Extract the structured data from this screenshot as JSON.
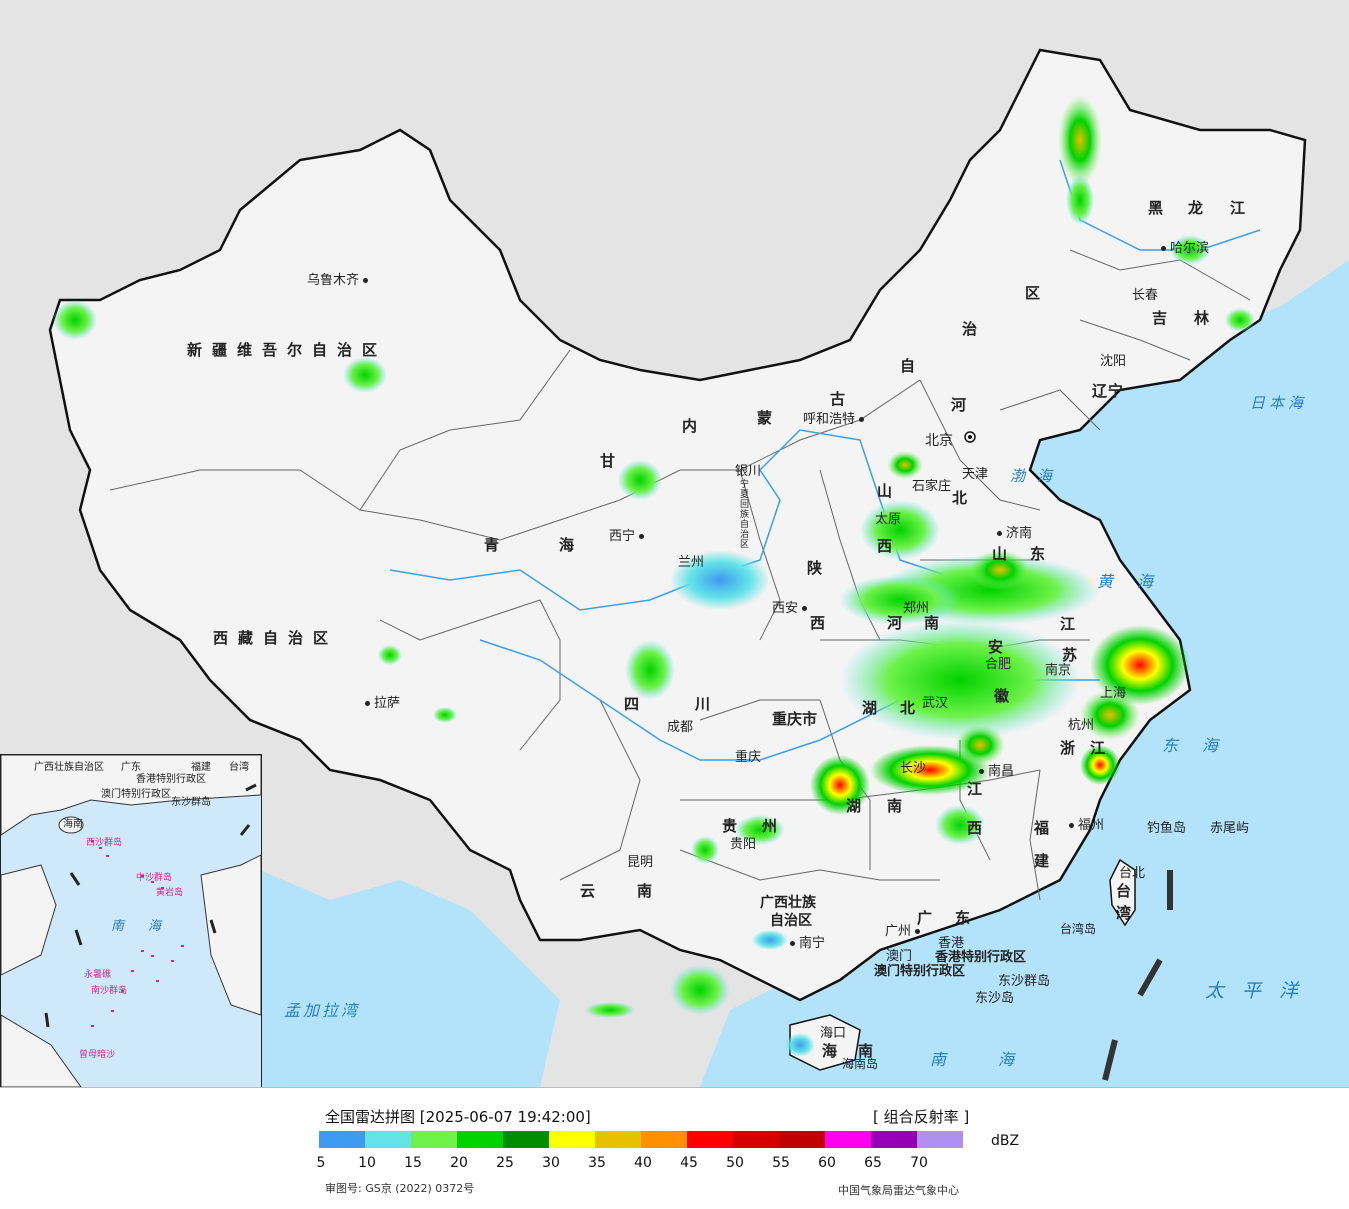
{
  "legend": {
    "title": "全国雷达拼图 [2025-06-07 19:42:00]",
    "product": "[ 组合反射率 ]",
    "unit": "dBZ",
    "approval": "审图号: GS京 (2022) 0372号",
    "agency": "中国气象局雷达气象中心",
    "scale_colors": [
      "#3f9bf0",
      "#63e3e8",
      "#6ef24a",
      "#00d200",
      "#008e00",
      "#ffff00",
      "#e7c000",
      "#ff9000",
      "#ff0000",
      "#d60000",
      "#c00000",
      "#ff00f0",
      "#9600b4",
      "#ad90f0"
    ],
    "ticks": [
      "5",
      "10",
      "15",
      "20",
      "25",
      "30",
      "35",
      "40",
      "45",
      "50",
      "55",
      "60",
      "65",
      "70"
    ]
  },
  "provinces": [
    "新疆维吾尔自治区",
    "西藏自治区",
    "青海",
    "甘",
    "内",
    "蒙",
    "古",
    "自",
    "治",
    "区",
    "黑",
    "龙",
    "江",
    "吉",
    "林",
    "辽",
    "宁",
    "河",
    "北",
    "山",
    "西",
    "陕",
    "西",
    "四",
    "川",
    "重庆市",
    "贵",
    "州",
    "云",
    "南",
    "广西壮族",
    "自治区",
    "广",
    "东",
    "湖",
    "南",
    "湖",
    "北",
    "江",
    "西",
    "福",
    "建",
    "浙",
    "江",
    "安",
    "徽",
    "江",
    "苏",
    "山",
    "东",
    "河",
    "南",
    "海",
    "南",
    "宁夏回族自治区",
    "香港特别行政区",
    "澳门特别行政区",
    "台",
    "湾"
  ],
  "cities": [
    "乌鲁木齐",
    "拉萨",
    "西宁",
    "兰州",
    "银川",
    "呼和浩特",
    "北京",
    "天津",
    "石家庄",
    "太原",
    "济南",
    "郑州",
    "西安",
    "成都",
    "重庆",
    "贵阳",
    "昆明",
    "南宁",
    "广州",
    "香港",
    "澳门",
    "海口",
    "长沙",
    "武汉",
    "合肥",
    "南京",
    "上海",
    "杭州",
    "南昌",
    "福州",
    "台北",
    "沈阳",
    "长春",
    "哈尔滨"
  ],
  "islands": [
    "钓鱼岛",
    "赤尾屿",
    "台湾岛",
    "东沙群岛",
    "东沙岛",
    "海南岛"
  ],
  "seas": [
    "日本海",
    "渤海",
    "黄海",
    "东海",
    "太平洋",
    "南海",
    "孟加拉湾"
  ],
  "inset": {
    "labels": [
      "广西壮族自治区",
      "广东",
      "福建",
      "台湾",
      "香港特别行政区",
      "澳门特别行政区",
      "东沙群岛",
      "海南",
      "南海"
    ],
    "islands": [
      "西沙群岛",
      "中沙群岛",
      "黄岩岛",
      "永暑礁",
      "南沙群岛",
      "曾母暗沙"
    ]
  }
}
